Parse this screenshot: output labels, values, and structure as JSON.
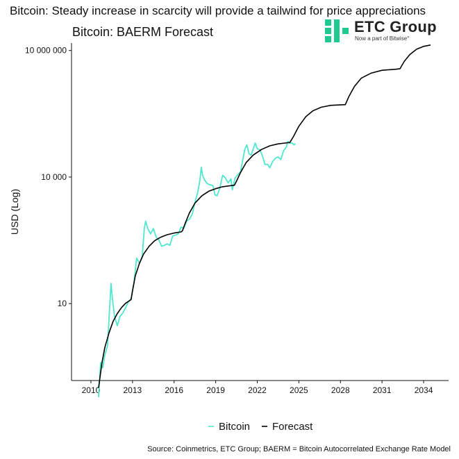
{
  "headline": "Bitcoin: Steady increase in scarcity will provide a tailwind for price appreciations",
  "logo": {
    "brand": "ETC Group",
    "tagline": "Now a part of Bitwise°",
    "brand_color": "#1fc98f"
  },
  "source": "Source: Coinmetrics, ETC Group; BAERM = Bitcoin Autocorrelated Exchange Rate Model",
  "chart_data": {
    "type": "line",
    "title": "Bitcoin: BAERM Forecast",
    "ylabel": "USD (Log)",
    "xlabel": "",
    "yscale": "log",
    "ylim": [
      0.15,
      15000000
    ],
    "xlim": [
      2008.6,
      2035.8
    ],
    "xticks": [
      "2010",
      "2013",
      "2016",
      "2019",
      "2022",
      "2025",
      "2028",
      "2031",
      "2034"
    ],
    "yticks": [
      {
        "value": 10,
        "label": "10"
      },
      {
        "value": 10000,
        "label": "10 000"
      },
      {
        "value": 10000000,
        "label": "10 000 000"
      }
    ],
    "grid": false,
    "legend_position": "bottom",
    "series": [
      {
        "name": "Bitcoin",
        "color": "#4fe6cf",
        "points": [
          [
            2010.55,
            0.06
          ],
          [
            2010.7,
            0.4
          ],
          [
            2010.85,
            0.3
          ],
          [
            2011.0,
            0.6
          ],
          [
            2011.2,
            1.0
          ],
          [
            2011.35,
            8
          ],
          [
            2011.45,
            30
          ],
          [
            2011.55,
            13
          ],
          [
            2011.7,
            5
          ],
          [
            2011.9,
            3
          ],
          [
            2012.1,
            5
          ],
          [
            2012.3,
            6
          ],
          [
            2012.5,
            8
          ],
          [
            2012.7,
            11
          ],
          [
            2012.9,
            13
          ],
          [
            2013.1,
            30
          ],
          [
            2013.3,
            120
          ],
          [
            2013.5,
            90
          ],
          [
            2013.7,
            130
          ],
          [
            2013.85,
            600
          ],
          [
            2013.95,
            900
          ],
          [
            2014.1,
            600
          ],
          [
            2014.3,
            450
          ],
          [
            2014.5,
            600
          ],
          [
            2014.7,
            380
          ],
          [
            2014.9,
            320
          ],
          [
            2015.1,
            230
          ],
          [
            2015.3,
            240
          ],
          [
            2015.5,
            260
          ],
          [
            2015.7,
            240
          ],
          [
            2015.9,
            400
          ],
          [
            2016.1,
            420
          ],
          [
            2016.3,
            450
          ],
          [
            2016.5,
            650
          ],
          [
            2016.7,
            610
          ],
          [
            2016.9,
            900
          ],
          [
            2017.1,
            1000
          ],
          [
            2017.3,
            1300
          ],
          [
            2017.5,
            2500
          ],
          [
            2017.7,
            4300
          ],
          [
            2017.85,
            8000
          ],
          [
            2017.96,
            17000
          ],
          [
            2018.05,
            11000
          ],
          [
            2018.2,
            8500
          ],
          [
            2018.4,
            7000
          ],
          [
            2018.6,
            6500
          ],
          [
            2018.8,
            6300
          ],
          [
            2018.95,
            3800
          ],
          [
            2019.1,
            3600
          ],
          [
            2019.3,
            5500
          ],
          [
            2019.5,
            11000
          ],
          [
            2019.7,
            9500
          ],
          [
            2019.9,
            7300
          ],
          [
            2020.1,
            9000
          ],
          [
            2020.2,
            5000
          ],
          [
            2020.4,
            9500
          ],
          [
            2020.6,
            11500
          ],
          [
            2020.8,
            13500
          ],
          [
            2020.95,
            25000
          ],
          [
            2021.1,
            45000
          ],
          [
            2021.25,
            58000
          ],
          [
            2021.4,
            36000
          ],
          [
            2021.55,
            33000
          ],
          [
            2021.7,
            45000
          ],
          [
            2021.85,
            64000
          ],
          [
            2022.0,
            47000
          ],
          [
            2022.2,
            44000
          ],
          [
            2022.4,
            30000
          ],
          [
            2022.55,
            20000
          ],
          [
            2022.75,
            20000
          ],
          [
            2022.9,
            16500
          ],
          [
            2023.1,
            23000
          ],
          [
            2023.3,
            28000
          ],
          [
            2023.5,
            30000
          ],
          [
            2023.7,
            26000
          ],
          [
            2023.9,
            42000
          ],
          [
            2024.1,
            52000
          ],
          [
            2024.2,
            70000
          ],
          [
            2024.35,
            63000
          ],
          [
            2024.5,
            65000
          ],
          [
            2024.65,
            58000
          ],
          [
            2024.75,
            62000
          ]
        ]
      },
      {
        "name": "Forecast",
        "color": "#000000",
        "points": [
          [
            2010.55,
            0.1
          ],
          [
            2010.8,
            0.4
          ],
          [
            2011.0,
            0.9
          ],
          [
            2011.3,
            2.0
          ],
          [
            2011.6,
            3.8
          ],
          [
            2011.9,
            5.8
          ],
          [
            2012.2,
            8.0
          ],
          [
            2012.5,
            10.2
          ],
          [
            2012.8,
            11.8
          ],
          [
            2012.9,
            12.5
          ],
          [
            2013.0,
            20
          ],
          [
            2013.2,
            45
          ],
          [
            2013.5,
            90
          ],
          [
            2013.8,
            150
          ],
          [
            2014.2,
            230
          ],
          [
            2014.6,
            310
          ],
          [
            2015.0,
            370
          ],
          [
            2015.5,
            430
          ],
          [
            2016.0,
            470
          ],
          [
            2016.5,
            500
          ],
          [
            2016.6,
            530
          ],
          [
            2016.8,
            800
          ],
          [
            2017.1,
            1400
          ],
          [
            2017.5,
            2400
          ],
          [
            2018.0,
            3600
          ],
          [
            2018.5,
            4600
          ],
          [
            2019.0,
            5300
          ],
          [
            2019.5,
            5900
          ],
          [
            2020.0,
            6200
          ],
          [
            2020.35,
            6400
          ],
          [
            2020.5,
            8000
          ],
          [
            2020.8,
            13000
          ],
          [
            2021.2,
            22000
          ],
          [
            2021.7,
            33000
          ],
          [
            2022.3,
            45000
          ],
          [
            2022.9,
            55000
          ],
          [
            2023.5,
            61000
          ],
          [
            2024.0,
            64000
          ],
          [
            2024.35,
            66000
          ],
          [
            2024.6,
            90000
          ],
          [
            2025.0,
            160000
          ],
          [
            2025.5,
            270000
          ],
          [
            2026.0,
            370000
          ],
          [
            2026.6,
            450000
          ],
          [
            2027.3,
            500000
          ],
          [
            2028.35,
            520000
          ],
          [
            2028.6,
            800000
          ],
          [
            2029.0,
            1400000
          ],
          [
            2029.5,
            2200000
          ],
          [
            2030.2,
            2900000
          ],
          [
            2031.0,
            3400000
          ],
          [
            2032.0,
            3600000
          ],
          [
            2032.3,
            3700000
          ],
          [
            2032.6,
            5500000
          ],
          [
            2033.0,
            8000000
          ],
          [
            2033.5,
            10800000
          ],
          [
            2034.0,
            12500000
          ],
          [
            2034.5,
            13500000
          ]
        ]
      }
    ]
  }
}
